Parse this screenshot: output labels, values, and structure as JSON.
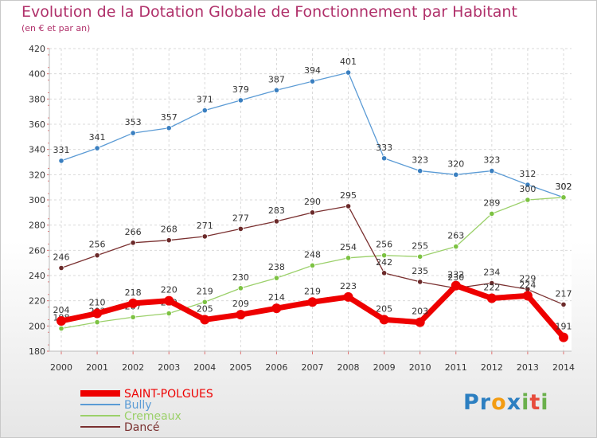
{
  "title": "Evolution de la Dotation Globale de Fonctionnement par Habitant",
  "subtitle": "(en € et par an)",
  "logo": {
    "text": "Proxiti",
    "letters": [
      "P",
      "r",
      "o",
      "x",
      "i",
      "t",
      "i"
    ],
    "colors": [
      "#2c7fc1",
      "#2c7fc1",
      "#f39c12",
      "#2c7fc1",
      "#6ab04c",
      "#e74c3c",
      "#6ab04c"
    ]
  },
  "chart_data": {
    "type": "line",
    "title": "Evolution de la Dotation Globale de Fonctionnement par Habitant",
    "subtitle": "(en € et par an)",
    "xlabel": "",
    "ylabel": "",
    "categories": [
      "2000",
      "2001",
      "2002",
      "2003",
      "2004",
      "2005",
      "2006",
      "2007",
      "2008",
      "2009",
      "2010",
      "2011",
      "2012",
      "2013",
      "2014"
    ],
    "ylim": [
      180,
      420
    ],
    "yticks": [
      180,
      200,
      220,
      240,
      260,
      280,
      300,
      320,
      340,
      360,
      380,
      400,
      420
    ],
    "grid": true,
    "legend_position": "bottom-left",
    "series": [
      {
        "name": "Bully",
        "color": "#5b9bd5",
        "marker": "#3a7fc0",
        "values": [
          331,
          341,
          353,
          357,
          371,
          379,
          387,
          394,
          401,
          333,
          323,
          320,
          323,
          312,
          302
        ],
        "labels": [
          "331",
          "341",
          "353",
          "357",
          "371",
          "379",
          "387",
          "394",
          "401",
          "333",
          "323",
          "320",
          "323",
          "312",
          "302"
        ]
      },
      {
        "name": "Cremeaux",
        "color": "#9bd06a",
        "marker": "#7cc242",
        "values": [
          198,
          203,
          207,
          210,
          219,
          230,
          238,
          248,
          254,
          256,
          255,
          263,
          289,
          300,
          302
        ],
        "labels": [
          "198",
          "203",
          "207",
          "210",
          "219",
          "230",
          "238",
          "248",
          "254",
          "256",
          "255",
          "263",
          "289",
          "300",
          "302"
        ]
      },
      {
        "name": "Dancé",
        "color": "#7a3030",
        "marker": "#6b2a2a",
        "values": [
          246,
          256,
          266,
          268,
          271,
          277,
          283,
          290,
          295,
          242,
          235,
          230,
          234,
          229,
          217
        ],
        "labels": [
          "246",
          "256",
          "266",
          "268",
          "271",
          "277",
          "283",
          "290",
          "295",
          "242",
          "235",
          "230",
          "234",
          "229",
          "217"
        ]
      },
      {
        "name": "SAINT-POLGUES",
        "color": "#ee0000",
        "marker": "#ee0000",
        "values": [
          204,
          210,
          218,
          220,
          205,
          209,
          214,
          219,
          223,
          205,
          203,
          232,
          222,
          224,
          191
        ],
        "labels": [
          "204",
          "210",
          "218",
          "220",
          "205",
          "209",
          "214",
          "219",
          "223",
          "205",
          "203",
          "232",
          "222",
          "224",
          "191"
        ]
      }
    ],
    "legend_order": [
      "SAINT-POLGUES",
      "Bully",
      "Cremeaux",
      "Dancé"
    ]
  }
}
